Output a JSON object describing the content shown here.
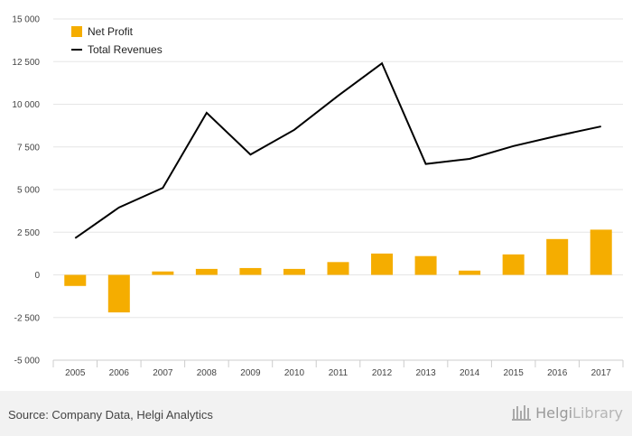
{
  "chart_data": {
    "type": "bar",
    "categories": [
      "2005",
      "2006",
      "2007",
      "2008",
      "2009",
      "2010",
      "2011",
      "2012",
      "2013",
      "2014",
      "2015",
      "2016",
      "2017"
    ],
    "series": [
      {
        "name": "Net Profit",
        "kind": "bar",
        "color": "#f5ad00",
        "values": [
          -650,
          -2200,
          200,
          350,
          400,
          350,
          750,
          1250,
          1100,
          250,
          1200,
          2100,
          2650
        ]
      },
      {
        "name": "Total Revenues",
        "kind": "line",
        "color": "#000000",
        "values": [
          2150,
          3950,
          5100,
          9500,
          7050,
          8500,
          10500,
          12400,
          6500,
          6800,
          7550,
          8150,
          8700
        ]
      }
    ],
    "ylim": [
      -5000,
      15000
    ],
    "yticks": [
      -5000,
      -2500,
      0,
      2500,
      5000,
      7500,
      10000,
      12500,
      15000
    ],
    "ytick_labels": [
      "-5 000",
      "-2 500",
      "0",
      "2 500",
      "5 000",
      "7 500",
      "10 000",
      "12 500",
      "15 000"
    ],
    "grid": true,
    "legend_position": "top-left"
  },
  "footer": {
    "source": "Source: Company Data, Helgi Analytics",
    "brand_part1": "Helgi",
    "brand_part2": "Library",
    "brand_icon": "helgi-logo-icon"
  }
}
